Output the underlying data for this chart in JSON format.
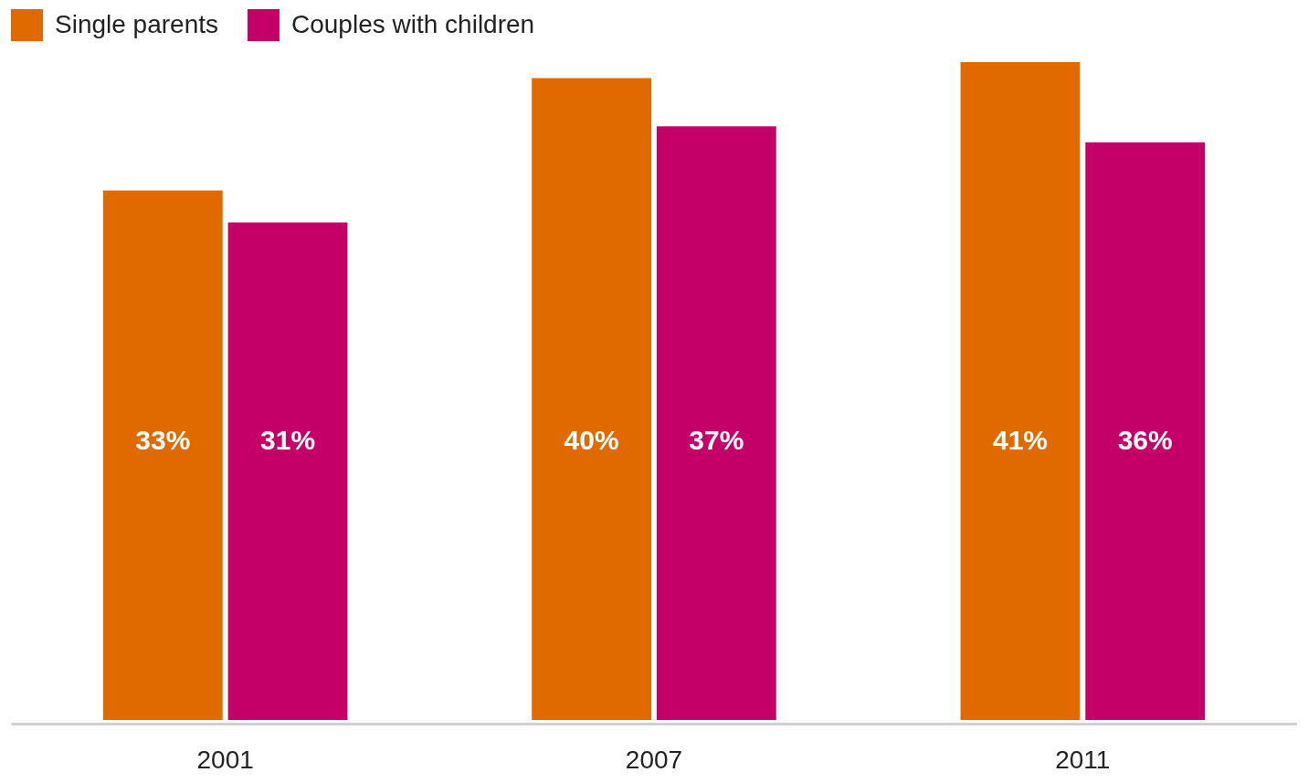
{
  "chart_data": {
    "type": "bar",
    "categories": [
      "2001",
      "2007",
      "2011"
    ],
    "series": [
      {
        "name": "Single parents",
        "color": "#e06a00",
        "values": [
          33,
          40,
          41
        ],
        "value_labels": [
          "33%",
          "40%",
          "41%"
        ]
      },
      {
        "name": "Couples with children",
        "color": "#c40068",
        "values": [
          31,
          37,
          36
        ],
        "value_labels": [
          "31%",
          "37%",
          "36%"
        ]
      }
    ],
    "legend": "top left",
    "tick_labels": "x"
  }
}
